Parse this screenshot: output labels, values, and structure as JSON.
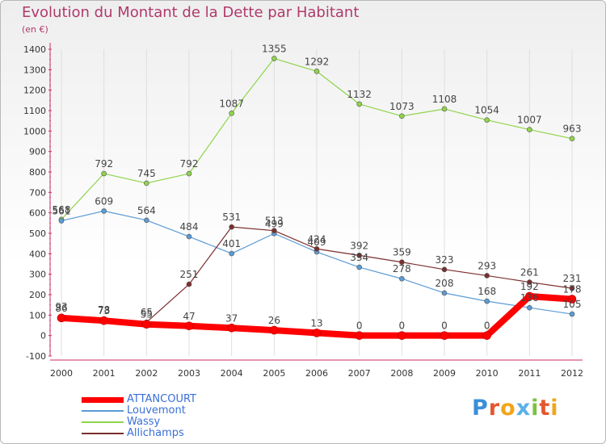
{
  "title": "Evolution du Montant de la Dette par Habitant",
  "subtitle": "(en €)",
  "chart_data": {
    "type": "line",
    "title": "Evolution du Montant de la Dette par Habitant",
    "subtitle": "(en €)",
    "xlabel": "",
    "ylabel": "",
    "x": [
      "2000",
      "2001",
      "2002",
      "2003",
      "2004",
      "2005",
      "2006",
      "2007",
      "2008",
      "2009",
      "2010",
      "2011",
      "2012"
    ],
    "ylim": [
      -100,
      1400
    ],
    "yticks": [
      -100,
      0,
      100,
      200,
      300,
      400,
      500,
      600,
      700,
      800,
      900,
      1000,
      1100,
      1200,
      1300,
      1400
    ],
    "grid": "vertical",
    "legend_position": "bottom-left",
    "series": [
      {
        "name": "ATTANCOURT",
        "color": "#ff0000",
        "values": [
          86,
          73,
          55,
          47,
          37,
          26,
          13,
          0,
          0,
          0,
          0,
          192,
          178
        ],
        "labels": [
          "86",
          "73",
          "55",
          "47",
          "37",
          "26",
          "13",
          "0",
          "0",
          "0",
          "0",
          "192",
          "178"
        ]
      },
      {
        "name": "Louvemont",
        "color": "#5b9bd5",
        "values": [
          561,
          609,
          564,
          484,
          401,
          499,
          409,
          334,
          278,
          208,
          168,
          136,
          105
        ],
        "labels": [
          "561",
          "609",
          "564",
          "484",
          "401",
          "499",
          "409",
          "334",
          "278",
          "208",
          "168",
          "136",
          "105"
        ]
      },
      {
        "name": "Wassy",
        "color": "#8fd44a",
        "values": [
          568,
          792,
          745,
          792,
          1087,
          1355,
          1292,
          1132,
          1073,
          1108,
          1054,
          1007,
          963
        ],
        "labels": [
          "568",
          "792",
          "745",
          "792",
          "1087",
          "1355",
          "1292",
          "1132",
          "1073",
          "1108",
          "1054",
          "1007",
          "963"
        ]
      },
      {
        "name": "Allichamps",
        "color": "#7b2e2e",
        "values": [
          93,
          78,
          65,
          251,
          531,
          513,
          424,
          392,
          359,
          323,
          293,
          261,
          231
        ],
        "labels": [
          "93",
          "78",
          "65",
          "251",
          "531",
          "513",
          "424",
          "392",
          "359",
          "323",
          "293",
          "261",
          "231"
        ]
      }
    ]
  },
  "legend": {
    "items": [
      {
        "label": "ATTANCOURT",
        "color": "#ff0000"
      },
      {
        "label": "Louvemont",
        "color": "#5b9bd5"
      },
      {
        "label": "Wassy",
        "color": "#8fd44a"
      },
      {
        "label": "Allichamps",
        "color": "#7b2e2e"
      }
    ]
  },
  "logo": {
    "text": "Proxiti",
    "colors": [
      "#3a8fd8",
      "#e4572e",
      "#f2a51a",
      "#5bb0e6",
      "#7cc242",
      "#e4572e",
      "#f2a51a"
    ]
  }
}
